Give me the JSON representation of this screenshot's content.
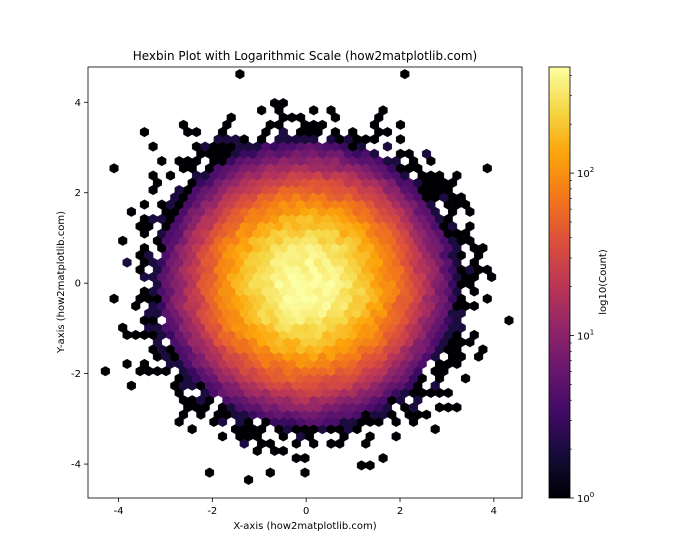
{
  "chart_data": {
    "type": "hexbin",
    "title": "Hexbin Plot with Logarithmic Scale (how2matplotlib.com)",
    "xlabel": "X-axis (how2matplotlib.com)",
    "ylabel": "Y-axis (how2matplotlib.com)",
    "xlim": [
      -4.65,
      4.6
    ],
    "ylim": [
      -4.75,
      4.78
    ],
    "xticks": [
      -4,
      -2,
      0,
      2,
      4
    ],
    "yticks": [
      -4,
      -2,
      0,
      2,
      4
    ],
    "xtick_labels": [
      "-4",
      "-2",
      "0",
      "2",
      "4"
    ],
    "ytick_labels": [
      "-4",
      "-2",
      "0",
      "2",
      "4"
    ],
    "grid": false,
    "gridsize": 50,
    "distribution": "bivariate standard normal, approx. 100000 points",
    "colormap": "inferno",
    "colorbar": {
      "label": "log10(Count)",
      "scale": "log",
      "range": [
        1,
        450
      ],
      "ticks": [
        {
          "value": 1,
          "base": "10",
          "exp": "0"
        },
        {
          "value": 10,
          "base": "10",
          "exp": "1"
        },
        {
          "value": 100,
          "base": "10",
          "exp": "2"
        }
      ]
    },
    "peak_count": 450
  }
}
